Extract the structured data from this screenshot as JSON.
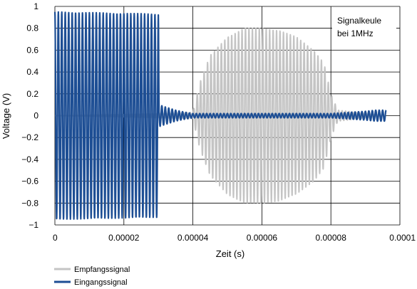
{
  "chart_data": {
    "type": "line",
    "xlabel": "Zeit (s)",
    "ylabel": "Voltage (V)",
    "xlim": [
      0,
      0.0001
    ],
    "ylim": [
      -1,
      1
    ],
    "x_ticks": [
      "0",
      "0.00002",
      "0.00004",
      "0.00006",
      "0.00008",
      "0.0001"
    ],
    "y_ticks": [
      "1",
      "0.8",
      "0.6",
      "0.4",
      "0.2",
      "0",
      "−0.2",
      "−0.4",
      "−0.6",
      "−0.8",
      "−1"
    ],
    "grid": true,
    "legend_position": "bottom-left",
    "annotation": [
      "Signalkeule",
      "bei 1MHz"
    ],
    "signal_frequency_hz": 1000000,
    "series": [
      {
        "name": "Empfangssignal",
        "color": "#c4c4c4",
        "envelope": {
          "x": [
            0.0,
            4e-05,
            4.2e-05,
            4.5e-05,
            5e-05,
            5.5e-05,
            6e-05,
            6.5e-05,
            7e-05,
            7.5e-05,
            7.8e-05,
            8e-05,
            8.2e-05,
            9.6e-05
          ],
          "amplitude": [
            0.0,
            0.03,
            0.3,
            0.55,
            0.72,
            0.8,
            0.8,
            0.78,
            0.72,
            0.6,
            0.48,
            0.2,
            0.05,
            0.0
          ]
        }
      },
      {
        "name": "Eingangssignal",
        "color": "#1d4e94",
        "envelope": {
          "x": [
            0.0,
            3e-05,
            3.02e-05,
            3.2e-05,
            3.5e-05,
            3.8e-05,
            4e-05,
            5e-05,
            6e-05,
            7e-05,
            8e-05,
            8.5e-05,
            9e-05,
            9.3e-05,
            9.6e-05
          ],
          "amplitude": [
            0.95,
            0.93,
            0.1,
            0.08,
            0.05,
            0.03,
            0.02,
            0.02,
            0.02,
            0.02,
            0.02,
            0.03,
            0.04,
            0.05,
            0.05
          ]
        }
      }
    ]
  }
}
